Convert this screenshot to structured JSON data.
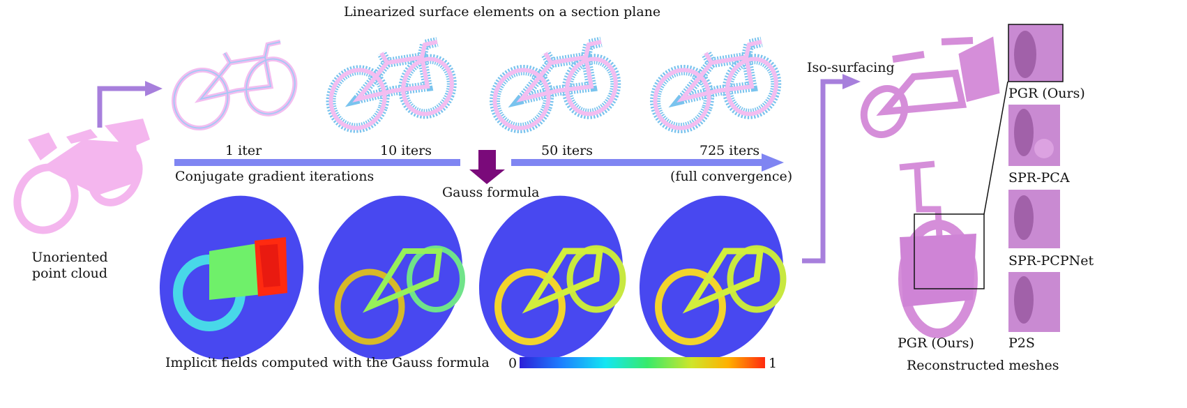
{
  "title": "Linearized surface elements on a section plane",
  "input_label": [
    "Unoriented",
    "point cloud"
  ],
  "iterations": {
    "labels": [
      "1 iter",
      "10 iters",
      "50 iters",
      "725 iters"
    ],
    "axis_label": "Conjugate gradient iterations",
    "convergence_note": "(full convergence)"
  },
  "gauss_label": "Gauss formula",
  "fields_caption": "Implicit fields computed with the Gauss formula",
  "colorbar": {
    "min_label": "0",
    "max_label": "1",
    "colors": [
      "#2b1fd8",
      "#1d7fff",
      "#13e6f2",
      "#37ea6b",
      "#cfe52a",
      "#ffb000",
      "#ff2a10"
    ]
  },
  "isosurfacing_label": "Iso-surfacing",
  "methods": [
    "PGR (Ours)",
    "SPR-PCA",
    "SPR-PCPNet",
    "P2S"
  ],
  "main_mesh_label": "PGR (Ours)",
  "meshes_caption": "Reconstructed meshes",
  "colors": {
    "arrow": "#a77fdc",
    "blue_bar": "#7f85f2",
    "gauss_arrow": "#7a0a7a",
    "point_pink": "#f4b6ee",
    "mesh": "#d58ed9",
    "field_bg": "#4848f0"
  }
}
